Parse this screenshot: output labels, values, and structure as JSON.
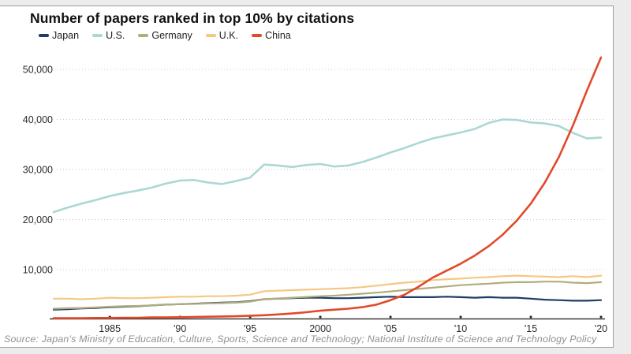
{
  "page": {
    "title": "Number of papers ranked in top 10% by citations",
    "source": "Source: Japan's Ministry of Education, Culture, Sports, Science and Technology; National Institute of Science and Technology Policy"
  },
  "colors": {
    "grid": "#c7c7c7",
    "axis": "#3a3a3a",
    "tick_label": "#2b2b2b",
    "card_border": "#9e9e9e",
    "background": "#ffffff"
  },
  "chart_data": {
    "type": "line",
    "title": "Number of papers ranked in top 10% by citations",
    "xlabel": "",
    "ylabel": "",
    "grid": "horizontal-dotted",
    "legend_position": "top-left",
    "ylim": [
      0,
      53000
    ],
    "yticks": [
      10000,
      20000,
      30000,
      40000,
      50000
    ],
    "ytick_labels": [
      "10,000",
      "20,000",
      "30,000",
      "40,000",
      "50,000"
    ],
    "xticks": [
      1985,
      1990,
      1995,
      2000,
      2005,
      2010,
      2015,
      2020
    ],
    "xtick_labels": [
      "1985",
      "'90",
      "'95",
      "2000",
      "'05",
      "'10",
      "'15",
      "'20"
    ],
    "x": [
      1981,
      1982,
      1983,
      1984,
      1985,
      1986,
      1987,
      1988,
      1989,
      1990,
      1991,
      1992,
      1993,
      1994,
      1995,
      1996,
      1997,
      1998,
      1999,
      2000,
      2001,
      2002,
      2003,
      2004,
      2005,
      2006,
      2007,
      2008,
      2009,
      2010,
      2011,
      2012,
      2013,
      2014,
      2015,
      2016,
      2017,
      2018,
      2019,
      2020
    ],
    "series": [
      {
        "name": "Japan",
        "color": "#1e3c66",
        "values": [
          2000,
          2100,
          2250,
          2350,
          2500,
          2600,
          2700,
          2850,
          3000,
          3100,
          3200,
          3300,
          3400,
          3500,
          3700,
          4100,
          4200,
          4300,
          4400,
          4400,
          4300,
          4300,
          4400,
          4500,
          4600,
          4500,
          4500,
          4500,
          4600,
          4500,
          4400,
          4500,
          4400,
          4400,
          4200,
          4000,
          3900,
          3800,
          3800,
          3900
        ]
      },
      {
        "name": "U.S.",
        "color": "#abd8d2",
        "values": [
          21500,
          22400,
          23200,
          23900,
          24700,
          25300,
          25800,
          26400,
          27200,
          27800,
          27900,
          27400,
          27100,
          27700,
          28400,
          31000,
          30800,
          30500,
          30900,
          31100,
          30600,
          30800,
          31500,
          32400,
          33400,
          34300,
          35300,
          36200,
          36800,
          37400,
          38100,
          39300,
          40000,
          39900,
          39400,
          39200,
          38700,
          37300,
          36200,
          36400
        ]
      },
      {
        "name": "Germany",
        "color": "#b2ad7c",
        "values": [
          2200,
          2300,
          2350,
          2450,
          2600,
          2700,
          2750,
          2850,
          3000,
          3100,
          3150,
          3250,
          3300,
          3400,
          3600,
          4100,
          4250,
          4400,
          4550,
          4700,
          4800,
          5000,
          5200,
          5400,
          5650,
          5900,
          6150,
          6400,
          6650,
          6900,
          7050,
          7200,
          7400,
          7500,
          7500,
          7600,
          7600,
          7400,
          7300,
          7500
        ]
      },
      {
        "name": "U.K.",
        "color": "#f5c881",
        "values": [
          4200,
          4200,
          4100,
          4200,
          4400,
          4300,
          4300,
          4400,
          4500,
          4600,
          4600,
          4700,
          4700,
          4800,
          5000,
          5700,
          5800,
          5900,
          6000,
          6100,
          6200,
          6300,
          6500,
          6800,
          7100,
          7400,
          7600,
          7900,
          8100,
          8200,
          8400,
          8500,
          8700,
          8800,
          8700,
          8600,
          8500,
          8700,
          8500,
          8800
        ]
      },
      {
        "name": "China",
        "color": "#e2492a",
        "values": [
          300,
          300,
          300,
          350,
          350,
          400,
          400,
          450,
          450,
          500,
          550,
          600,
          650,
          700,
          800,
          900,
          1050,
          1250,
          1500,
          1800,
          2000,
          2200,
          2500,
          3000,
          3900,
          5000,
          6600,
          8400,
          9800,
          11200,
          12800,
          14700,
          17000,
          19800,
          23200,
          27400,
          32500,
          38800,
          45800,
          52400
        ]
      }
    ]
  }
}
